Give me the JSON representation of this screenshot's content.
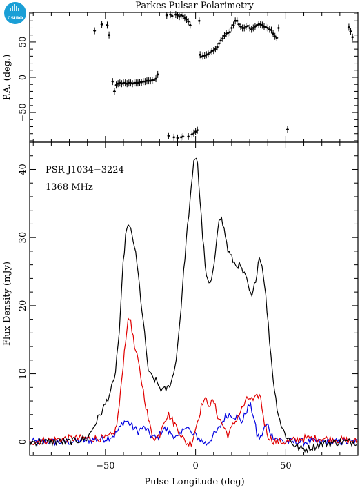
{
  "title": "Parkes Pulsar Polarimetry",
  "logo": {
    "text": "CSIRO",
    "color": "#1a9fd6"
  },
  "annotations": [
    "PSR J1034−3224",
    "1368 MHz"
  ],
  "chart_data": [
    {
      "type": "scatter",
      "ylabel": "P.A. (deg.)",
      "xlim": [
        -92,
        90
      ],
      "ylim": [
        -92,
        92
      ],
      "yticks": [
        -50,
        0,
        50
      ],
      "error_bars": true,
      "points": [
        [
          -56,
          66
        ],
        [
          -52,
          75
        ],
        [
          -49,
          74
        ],
        [
          -48,
          60
        ],
        [
          -46,
          -6
        ],
        [
          -45,
          -20
        ],
        [
          -44,
          -11
        ],
        [
          -43,
          -9
        ],
        [
          -42,
          -8
        ],
        [
          -41,
          -9
        ],
        [
          -40,
          -8
        ],
        [
          -39,
          -8
        ],
        [
          -38,
          -9
        ],
        [
          -37,
          -8
        ],
        [
          -36,
          -8
        ],
        [
          -35,
          -9
        ],
        [
          -34,
          -8
        ],
        [
          -33,
          -8
        ],
        [
          -32,
          -8
        ],
        [
          -31,
          -7
        ],
        [
          -30,
          -7
        ],
        [
          -29,
          -6
        ],
        [
          -28,
          -6
        ],
        [
          -27,
          -5
        ],
        [
          -26,
          -5
        ],
        [
          -25,
          -5
        ],
        [
          -24,
          -4
        ],
        [
          -23,
          -4
        ],
        [
          -22,
          -2
        ],
        [
          -21,
          4
        ],
        [
          -15,
          -83
        ],
        [
          -12,
          -85
        ],
        [
          -10,
          -86
        ],
        [
          -8,
          -85
        ],
        [
          -7,
          -84
        ],
        [
          -4,
          -84
        ],
        [
          -2,
          -81
        ],
        [
          -1,
          -79
        ],
        [
          0,
          -77
        ],
        [
          1,
          -75
        ],
        [
          -16,
          88
        ],
        [
          -14,
          89
        ],
        [
          -13,
          87
        ],
        [
          -11,
          89
        ],
        [
          -10,
          88
        ],
        [
          -9,
          86
        ],
        [
          -8,
          88
        ],
        [
          -7,
          87
        ],
        [
          -6,
          84
        ],
        [
          -5,
          82
        ],
        [
          -4,
          79
        ],
        [
          -3,
          74
        ],
        [
          2,
          80
        ],
        [
          2.5,
          32
        ],
        [
          3,
          29
        ],
        [
          4,
          30
        ],
        [
          5,
          31
        ],
        [
          6,
          32
        ],
        [
          7,
          33
        ],
        [
          8,
          35
        ],
        [
          9,
          37
        ],
        [
          10,
          38
        ],
        [
          11,
          40
        ],
        [
          12,
          43
        ],
        [
          13,
          48
        ],
        [
          14,
          52
        ],
        [
          15,
          55
        ],
        [
          16,
          59
        ],
        [
          17,
          62
        ],
        [
          18,
          63
        ],
        [
          19,
          64
        ],
        [
          20,
          70
        ],
        [
          21,
          74
        ],
        [
          22,
          80
        ],
        [
          23,
          80
        ],
        [
          24,
          75
        ],
        [
          25,
          72
        ],
        [
          26,
          70
        ],
        [
          27,
          70
        ],
        [
          28,
          72
        ],
        [
          29,
          73
        ],
        [
          30,
          70
        ],
        [
          31,
          68
        ],
        [
          32,
          70
        ],
        [
          33,
          72
        ],
        [
          34,
          74
        ],
        [
          35,
          75
        ],
        [
          36,
          75
        ],
        [
          37,
          74
        ],
        [
          38,
          72
        ],
        [
          39,
          71
        ],
        [
          40,
          70
        ],
        [
          41,
          68
        ],
        [
          42,
          67
        ],
        [
          43,
          62
        ],
        [
          44,
          58
        ],
        [
          45,
          56
        ],
        [
          46,
          70
        ],
        [
          51,
          -74
        ],
        [
          85,
          71
        ],
        [
          86,
          65
        ],
        [
          87,
          57
        ]
      ]
    },
    {
      "type": "line",
      "xlabel": "Pulse Longitude (deg)",
      "ylabel": "Flux Density (mJy)",
      "xlim": [
        -92,
        90
      ],
      "ylim": [
        -2,
        44
      ],
      "xticks": [
        -50,
        0,
        50
      ],
      "yticks": [
        0,
        10,
        20,
        30,
        40
      ],
      "series": [
        {
          "color": "#000000",
          "x": [
            -92,
            -70,
            -60,
            -55,
            -50,
            -45,
            -42,
            -40,
            -38,
            -36,
            -34,
            -32,
            -30,
            -28,
            -26,
            -24,
            -22,
            -20,
            -18,
            -15,
            -12,
            -10,
            -8,
            -6,
            -4,
            -2,
            -1,
            0,
            1,
            2,
            4,
            6,
            8,
            10,
            12,
            13,
            14,
            16,
            18,
            20,
            22,
            24,
            26,
            28,
            30,
            31,
            32,
            34,
            35,
            36,
            38,
            40,
            42,
            44,
            46,
            48,
            50,
            52,
            55,
            58,
            62,
            70,
            80,
            90
          ],
          "y": [
            0,
            0,
            0.5,
            3,
            5.5,
            9,
            17,
            27,
            32,
            31,
            29,
            25,
            20,
            15,
            10,
            9.5,
            9,
            8,
            7.5,
            8,
            10,
            14,
            20,
            27,
            33,
            38,
            41,
            42,
            41.5,
            37,
            30,
            24,
            23,
            25,
            31,
            33,
            33,
            31,
            28,
            27,
            26,
            26,
            25,
            24,
            22,
            21,
            22,
            25,
            27,
            27,
            24,
            18,
            12,
            7,
            4,
            2,
            1,
            0.3,
            -0.5,
            -1,
            -1,
            -0.3,
            0,
            0
          ]
        },
        {
          "color": "#e00000",
          "x": [
            -92,
            -70,
            -50,
            -46,
            -44,
            -42,
            -40,
            -38,
            -37,
            -36,
            -35,
            -34,
            -32,
            -30,
            -28,
            -26,
            -24,
            -22,
            -20,
            -18,
            -15,
            -10,
            -6,
            -4,
            -2,
            0,
            2,
            4,
            6,
            8,
            10,
            12,
            14,
            16,
            18,
            20,
            24,
            28,
            30,
            32,
            34,
            35,
            36,
            38,
            40,
            42,
            45,
            50,
            60,
            70,
            80,
            90
          ],
          "y": [
            0,
            0.5,
            0.5,
            1,
            2,
            6,
            12,
            17,
            18,
            18,
            16,
            14,
            12,
            9,
            6,
            3,
            1,
            0.5,
            1,
            3,
            4,
            2,
            0,
            -0.3,
            0,
            2,
            4,
            6,
            6,
            5.5,
            6,
            4,
            3,
            2,
            1,
            2,
            4,
            6,
            6.5,
            6,
            6.5,
            7,
            6.5,
            3,
            1,
            0.3,
            0,
            0,
            0.5,
            0.5,
            0.3,
            0
          ]
        },
        {
          "color": "#0000e0",
          "x": [
            -92,
            -70,
            -50,
            -45,
            -42,
            -40,
            -38,
            -36,
            -34,
            -32,
            -30,
            -28,
            -25,
            -22,
            -20,
            -18,
            -15,
            -12,
            -10,
            -8,
            -6,
            -4,
            -2,
            0,
            2,
            4,
            6,
            8,
            10,
            12,
            14,
            16,
            18,
            20,
            24,
            26,
            28,
            30,
            32,
            34,
            36,
            38,
            40,
            42,
            45,
            50,
            60,
            70,
            80,
            90
          ],
          "y": [
            0,
            0,
            0.5,
            1,
            2,
            3,
            3,
            2.5,
            2,
            1.5,
            2,
            2,
            1,
            0.5,
            1,
            2,
            1.5,
            1,
            0.5,
            1,
            2.5,
            2,
            1,
            1,
            0.5,
            0,
            -0.3,
            0.3,
            1,
            1.5,
            2.5,
            3.5,
            4,
            4,
            3.5,
            3,
            4.5,
            5.5,
            4,
            1,
            0.5,
            2,
            2.5,
            1,
            0.5,
            0,
            0,
            0,
            0,
            0
          ]
        }
      ]
    }
  ]
}
